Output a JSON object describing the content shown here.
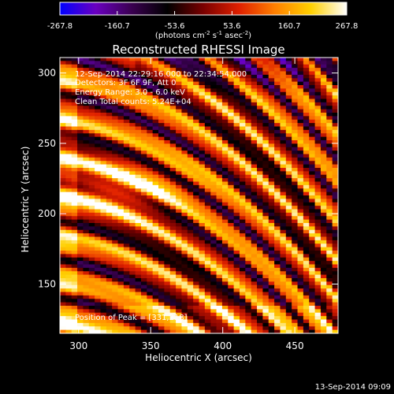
{
  "chart_data": {
    "type": "heatmap",
    "title": "Reconstructed RHESSI Image",
    "xlabel": "Heliocentric X (arcsec)",
    "ylabel": "Heliocentric Y (arcsec)",
    "xlim": [
      287,
      480
    ],
    "ylim": [
      115,
      311
    ],
    "xticks": [
      "300",
      "350",
      "400",
      "450"
    ],
    "xtick_values": [
      300,
      350,
      400,
      450
    ],
    "yticks": [
      "150",
      "200",
      "250",
      "300"
    ],
    "ytick_values": [
      150,
      200,
      250,
      300
    ],
    "colorbar": {
      "range": [
        -267.8,
        267.8
      ],
      "ticks": [
        "-267.8",
        "-160.7",
        "-53.6",
        "53.6",
        "160.7",
        "267.8"
      ],
      "tick_values": [
        -267.8,
        -160.7,
        -53.6,
        53.6,
        160.7,
        267.8
      ],
      "units_text": "(photons cm",
      "units_exp1": "-2",
      "units_mid": " s",
      "units_exp2": "-1",
      "units_end": " asec",
      "units_exp3": "-2",
      "units_close": ")",
      "colormap": [
        "#0000ff",
        "#6a00c0",
        "#3a0050",
        "#000000",
        "#7a0000",
        "#e02000",
        "#ff8000",
        "#ffd000",
        "#ffffff"
      ]
    },
    "annotations": [
      "12-Sep-2014 22:29:16.000 to 22:34:54.000",
      "Detectors: 3F 6F 9F, Att 0",
      "Energy Range: 3.0 - 6.0 keV",
      "Clean     Total counts: 5.24E+04"
    ],
    "peak_label": "Position of Peak = [331,218]",
    "peak": [
      331,
      218
    ]
  },
  "footer_date": "13-Sep-2014 09:09"
}
